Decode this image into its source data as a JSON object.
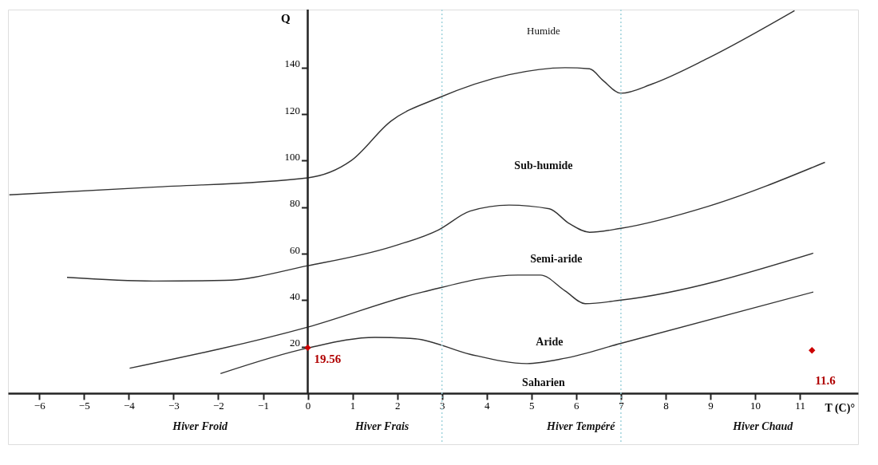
{
  "chart_data": {
    "type": "line",
    "xlabel": "T (C)°",
    "ylabel": "Q",
    "xlim": [
      -6.7,
      12.3
    ],
    "ylim": [
      -22,
      165
    ],
    "xticks": [
      -6,
      -5,
      -4,
      -3,
      -2,
      -1,
      0,
      1,
      2,
      3,
      4,
      5,
      6,
      7,
      8,
      9,
      10,
      11
    ],
    "yticks": [
      20,
      40,
      60,
      80,
      100,
      120,
      140
    ],
    "grid": false,
    "line_style": "solid",
    "marker": "none",
    "series": [
      {
        "color": "#333333",
        "x": [
          -6.67,
          -3.45,
          0,
          0.97,
          1.86,
          2.92,
          4.5,
          5.75,
          6.3,
          6.6,
          7.0,
          7.7,
          8.94,
          10.88
        ],
        "values": [
          85.3,
          88.6,
          92.6,
          100,
          117,
          127,
          137,
          140,
          139.5,
          134.5,
          129,
          133,
          144,
          164.5
        ]
      },
      {
        "color": "#333333",
        "x": [
          -5.38,
          -3.45,
          -1.86,
          0,
          1.86,
          2.92,
          3.63,
          4.5,
          5.4,
          5.84,
          6.3,
          7.0,
          8.94,
          11.56
        ],
        "values": [
          49.8,
          48.2,
          48.5,
          54.8,
          62.9,
          70.2,
          78.3,
          80.9,
          79.3,
          73,
          69.2,
          70.9,
          80.3,
          99.3
        ]
      },
      {
        "color": "#333333",
        "x": [
          -3.98,
          0,
          2.57,
          4.69,
          5.2,
          5.75,
          6.2,
          7.0,
          11.3
        ],
        "values": [
          10.7,
          28.4,
          43.5,
          50.8,
          50.8,
          44,
          38.5,
          40,
          60.2
        ]
      },
      {
        "color": "#333333",
        "x": [
          -1.95,
          0,
          1.5,
          2.4,
          3.63,
          4.9,
          5.75,
          7.0,
          11.3
        ],
        "values": [
          8.4,
          19.4,
          24,
          23.4,
          16.7,
          12.7,
          15,
          21.4,
          43.5
        ]
      },
      {
        "type": "scatter",
        "marker": "diamond",
        "color": "#cc0000",
        "x": [
          0,
          11.27
        ],
        "values": [
          19.56,
          18.4
        ]
      }
    ],
    "ref_lines": [
      {
        "axis": "x",
        "value": 3,
        "color": "#9fd3dc",
        "line_style": "dotted"
      },
      {
        "axis": "x",
        "value": 7,
        "color": "#9fd3dc",
        "line_style": "dotted"
      }
    ],
    "annotations": [
      "Humide",
      "Sub-humide",
      "Semi-aride",
      "Aride",
      "Saharien",
      {
        "text": "19.56",
        "x": 0,
        "y": 19.56
      },
      {
        "text": "11.6",
        "x": 11.27,
        "y": 18.4
      },
      "Hiver Froid",
      "Hiver Frais",
      "Hiver Tempéré",
      "Hiver Chaud"
    ]
  }
}
